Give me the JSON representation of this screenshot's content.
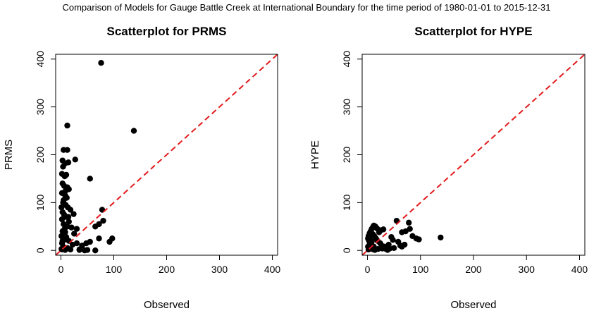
{
  "page_title": "Comparison of Models for Gauge Battle Creek at International Boundary for the time period of 1980-01-01 to 2015-12-31",
  "colors": {
    "points": "#000000",
    "reference_line": "#e31a1c",
    "frame": "#000000"
  },
  "chart_data": [
    {
      "type": "scatter",
      "title": "Scatterplot for PRMS",
      "xlabel": "Observed",
      "ylabel": "PRMS",
      "xlim": [
        -10,
        410
      ],
      "ylim": [
        -10,
        410
      ],
      "xticks": [
        0,
        100,
        200,
        300,
        400
      ],
      "yticks": [
        0,
        100,
        200,
        300,
        400
      ],
      "reference_line": "1:1",
      "grid": false,
      "points": [
        [
          76,
          392
        ],
        [
          138,
          250
        ],
        [
          12,
          261
        ],
        [
          5,
          210
        ],
        [
          12,
          210
        ],
        [
          3,
          188
        ],
        [
          8,
          182
        ],
        [
          14,
          184
        ],
        [
          27,
          190
        ],
        [
          55,
          150
        ],
        [
          4,
          175
        ],
        [
          2,
          160
        ],
        [
          7,
          155
        ],
        [
          10,
          158
        ],
        [
          3,
          140
        ],
        [
          6,
          135
        ],
        [
          12,
          132
        ],
        [
          15,
          128
        ],
        [
          2,
          120
        ],
        [
          8,
          115
        ],
        [
          11,
          110
        ],
        [
          4,
          100
        ],
        [
          9,
          95
        ],
        [
          13,
          90
        ],
        [
          18,
          85
        ],
        [
          3,
          80
        ],
        [
          24,
          76
        ],
        [
          6,
          75
        ],
        [
          10,
          70
        ],
        [
          2,
          65
        ],
        [
          15,
          60
        ],
        [
          5,
          55
        ],
        [
          12,
          50
        ],
        [
          20,
          48
        ],
        [
          30,
          45
        ],
        [
          3,
          40
        ],
        [
          8,
          38
        ],
        [
          25,
          35
        ],
        [
          1,
          30
        ],
        [
          10,
          28
        ],
        [
          6,
          22
        ],
        [
          15,
          20
        ],
        [
          2,
          15
        ],
        [
          22,
          12
        ],
        [
          40,
          10
        ],
        [
          4,
          8
        ],
        [
          12,
          5
        ],
        [
          1,
          3
        ],
        [
          18,
          2
        ],
        [
          8,
          1
        ],
        [
          35,
          1
        ],
        [
          50,
          1
        ],
        [
          45,
          0
        ],
        [
          65,
          0
        ],
        [
          78,
          85
        ],
        [
          72,
          55
        ],
        [
          80,
          62
        ],
        [
          65,
          50
        ],
        [
          72,
          25
        ],
        [
          97,
          25
        ],
        [
          92,
          18
        ],
        [
          55,
          18
        ],
        [
          48,
          15
        ],
        [
          30,
          15
        ],
        [
          35,
          2
        ],
        [
          2,
          2
        ],
        [
          6,
          6
        ],
        [
          3,
          20
        ],
        [
          7,
          45
        ],
        [
          1,
          90
        ],
        [
          5,
          105
        ],
        [
          9,
          125
        ],
        [
          14,
          70
        ]
      ]
    },
    {
      "type": "scatter",
      "title": "Scatterplot for HYPE",
      "xlabel": "Observed",
      "ylabel": "HYPE",
      "xlim": [
        -10,
        410
      ],
      "ylim": [
        -10,
        410
      ],
      "xticks": [
        0,
        100,
        200,
        300,
        400
      ],
      "yticks": [
        0,
        100,
        200,
        300,
        400
      ],
      "reference_line": "1:1",
      "grid": false,
      "points": [
        [
          138,
          27
        ],
        [
          97,
          23
        ],
        [
          92,
          25
        ],
        [
          55,
          62
        ],
        [
          78,
          58
        ],
        [
          80,
          45
        ],
        [
          65,
          38
        ],
        [
          72,
          40
        ],
        [
          65,
          8
        ],
        [
          50,
          5
        ],
        [
          48,
          22
        ],
        [
          40,
          12
        ],
        [
          35,
          3
        ],
        [
          30,
          44
        ],
        [
          25,
          42
        ],
        [
          22,
          38
        ],
        [
          18,
          46
        ],
        [
          15,
          50
        ],
        [
          12,
          52
        ],
        [
          10,
          48
        ],
        [
          8,
          45
        ],
        [
          6,
          40
        ],
        [
          4,
          36
        ],
        [
          2,
          30
        ],
        [
          1,
          25
        ],
        [
          3,
          20
        ],
        [
          5,
          15
        ],
        [
          7,
          10
        ],
        [
          9,
          5
        ],
        [
          11,
          2
        ],
        [
          14,
          1
        ],
        [
          20,
          3
        ],
        [
          28,
          4
        ],
        [
          32,
          8
        ],
        [
          13,
          30
        ],
        [
          16,
          25
        ],
        [
          19,
          20
        ],
        [
          24,
          15
        ],
        [
          27,
          10
        ],
        [
          3,
          5
        ],
        [
          2,
          2
        ],
        [
          6,
          28
        ],
        [
          10,
          34
        ],
        [
          45,
          28
        ],
        [
          58,
          18
        ],
        [
          62,
          10
        ],
        [
          70,
          12
        ],
        [
          85,
          30
        ],
        [
          4,
          12
        ],
        [
          8,
          18
        ],
        [
          12,
          8
        ],
        [
          38,
          1
        ],
        [
          42,
          4
        ],
        [
          1,
          8
        ]
      ]
    }
  ]
}
